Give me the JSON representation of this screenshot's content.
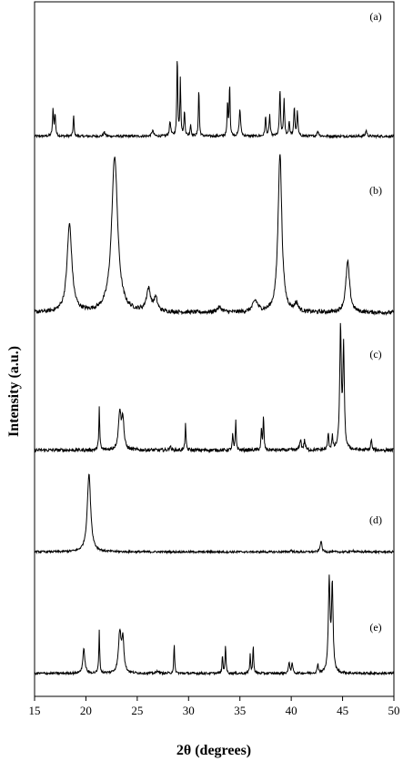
{
  "chart_data": {
    "type": "line",
    "title": "",
    "xlabel": "2θ (degrees)",
    "ylabel": "Intensity (a.u.)",
    "xlim": [
      15,
      50
    ],
    "xticks": [
      15,
      20,
      25,
      30,
      35,
      40,
      45,
      50
    ],
    "grid": false,
    "series": [
      {
        "name": "(a)",
        "baseline": 0.06,
        "peaks": [
          [
            16.8,
            0.28,
            0.06
          ],
          [
            17.0,
            0.22,
            0.06
          ],
          [
            18.8,
            0.22,
            0.05
          ],
          [
            21.8,
            0.04,
            0.1
          ],
          [
            26.5,
            0.06,
            0.1
          ],
          [
            28.2,
            0.15,
            0.08
          ],
          [
            28.9,
            0.85,
            0.05
          ],
          [
            29.2,
            0.6,
            0.05
          ],
          [
            29.6,
            0.25,
            0.06
          ],
          [
            30.2,
            0.12,
            0.06
          ],
          [
            31.0,
            0.5,
            0.05
          ],
          [
            33.8,
            0.35,
            0.05
          ],
          [
            34.0,
            0.55,
            0.05
          ],
          [
            35.0,
            0.28,
            0.08
          ],
          [
            37.5,
            0.2,
            0.06
          ],
          [
            37.9,
            0.22,
            0.06
          ],
          [
            38.9,
            0.48,
            0.06
          ],
          [
            39.3,
            0.38,
            0.06
          ],
          [
            39.8,
            0.15,
            0.06
          ],
          [
            40.3,
            0.3,
            0.06
          ],
          [
            40.6,
            0.25,
            0.06
          ],
          [
            42.6,
            0.05,
            0.1
          ],
          [
            47.3,
            0.06,
            0.08
          ]
        ]
      },
      {
        "name": "(b)",
        "baseline": 0.02,
        "peaks": [
          [
            18.4,
            0.55,
            0.28
          ],
          [
            22.8,
            0.98,
            0.35
          ],
          [
            26.1,
            0.14,
            0.25
          ],
          [
            26.8,
            0.08,
            0.2
          ],
          [
            33.0,
            0.03,
            0.3
          ],
          [
            36.5,
            0.07,
            0.3
          ],
          [
            38.9,
            1.0,
            0.22
          ],
          [
            40.5,
            0.05,
            0.2
          ],
          [
            45.5,
            0.32,
            0.22
          ]
        ]
      },
      {
        "name": "(c)",
        "baseline": 0.05,
        "peaks": [
          [
            21.3,
            0.32,
            0.05
          ],
          [
            23.3,
            0.28,
            0.15
          ],
          [
            23.6,
            0.22,
            0.12
          ],
          [
            28.2,
            0.03,
            0.08
          ],
          [
            29.7,
            0.2,
            0.05
          ],
          [
            34.3,
            0.12,
            0.05
          ],
          [
            34.6,
            0.22,
            0.05
          ],
          [
            37.1,
            0.15,
            0.05
          ],
          [
            37.3,
            0.25,
            0.05
          ],
          [
            40.9,
            0.08,
            0.08
          ],
          [
            41.3,
            0.07,
            0.08
          ],
          [
            43.6,
            0.12,
            0.06
          ],
          [
            44.0,
            0.1,
            0.06
          ],
          [
            44.8,
            0.9,
            0.09
          ],
          [
            45.1,
            0.75,
            0.08
          ],
          [
            47.8,
            0.08,
            0.06
          ]
        ]
      },
      {
        "name": "(d)",
        "baseline": 0.03,
        "peaks": [
          [
            20.3,
            0.95,
            0.2
          ],
          [
            40.0,
            0.02,
            0.1
          ],
          [
            42.9,
            0.14,
            0.09
          ],
          [
            46.0,
            0.02,
            0.1
          ]
        ]
      },
      {
        "name": "(e)",
        "baseline": 0.05,
        "peaks": [
          [
            19.8,
            0.25,
            0.12
          ],
          [
            21.3,
            0.45,
            0.05
          ],
          [
            23.3,
            0.42,
            0.15
          ],
          [
            23.6,
            0.35,
            0.12
          ],
          [
            27.0,
            0.03,
            0.1
          ],
          [
            28.6,
            0.3,
            0.05
          ],
          [
            33.3,
            0.18,
            0.05
          ],
          [
            33.6,
            0.3,
            0.05
          ],
          [
            36.0,
            0.2,
            0.05
          ],
          [
            36.3,
            0.3,
            0.05
          ],
          [
            39.8,
            0.12,
            0.07
          ],
          [
            40.1,
            0.1,
            0.07
          ],
          [
            42.6,
            0.1,
            0.06
          ],
          [
            43.7,
            0.95,
            0.1
          ],
          [
            44.0,
            0.9,
            0.09
          ]
        ]
      }
    ]
  }
}
